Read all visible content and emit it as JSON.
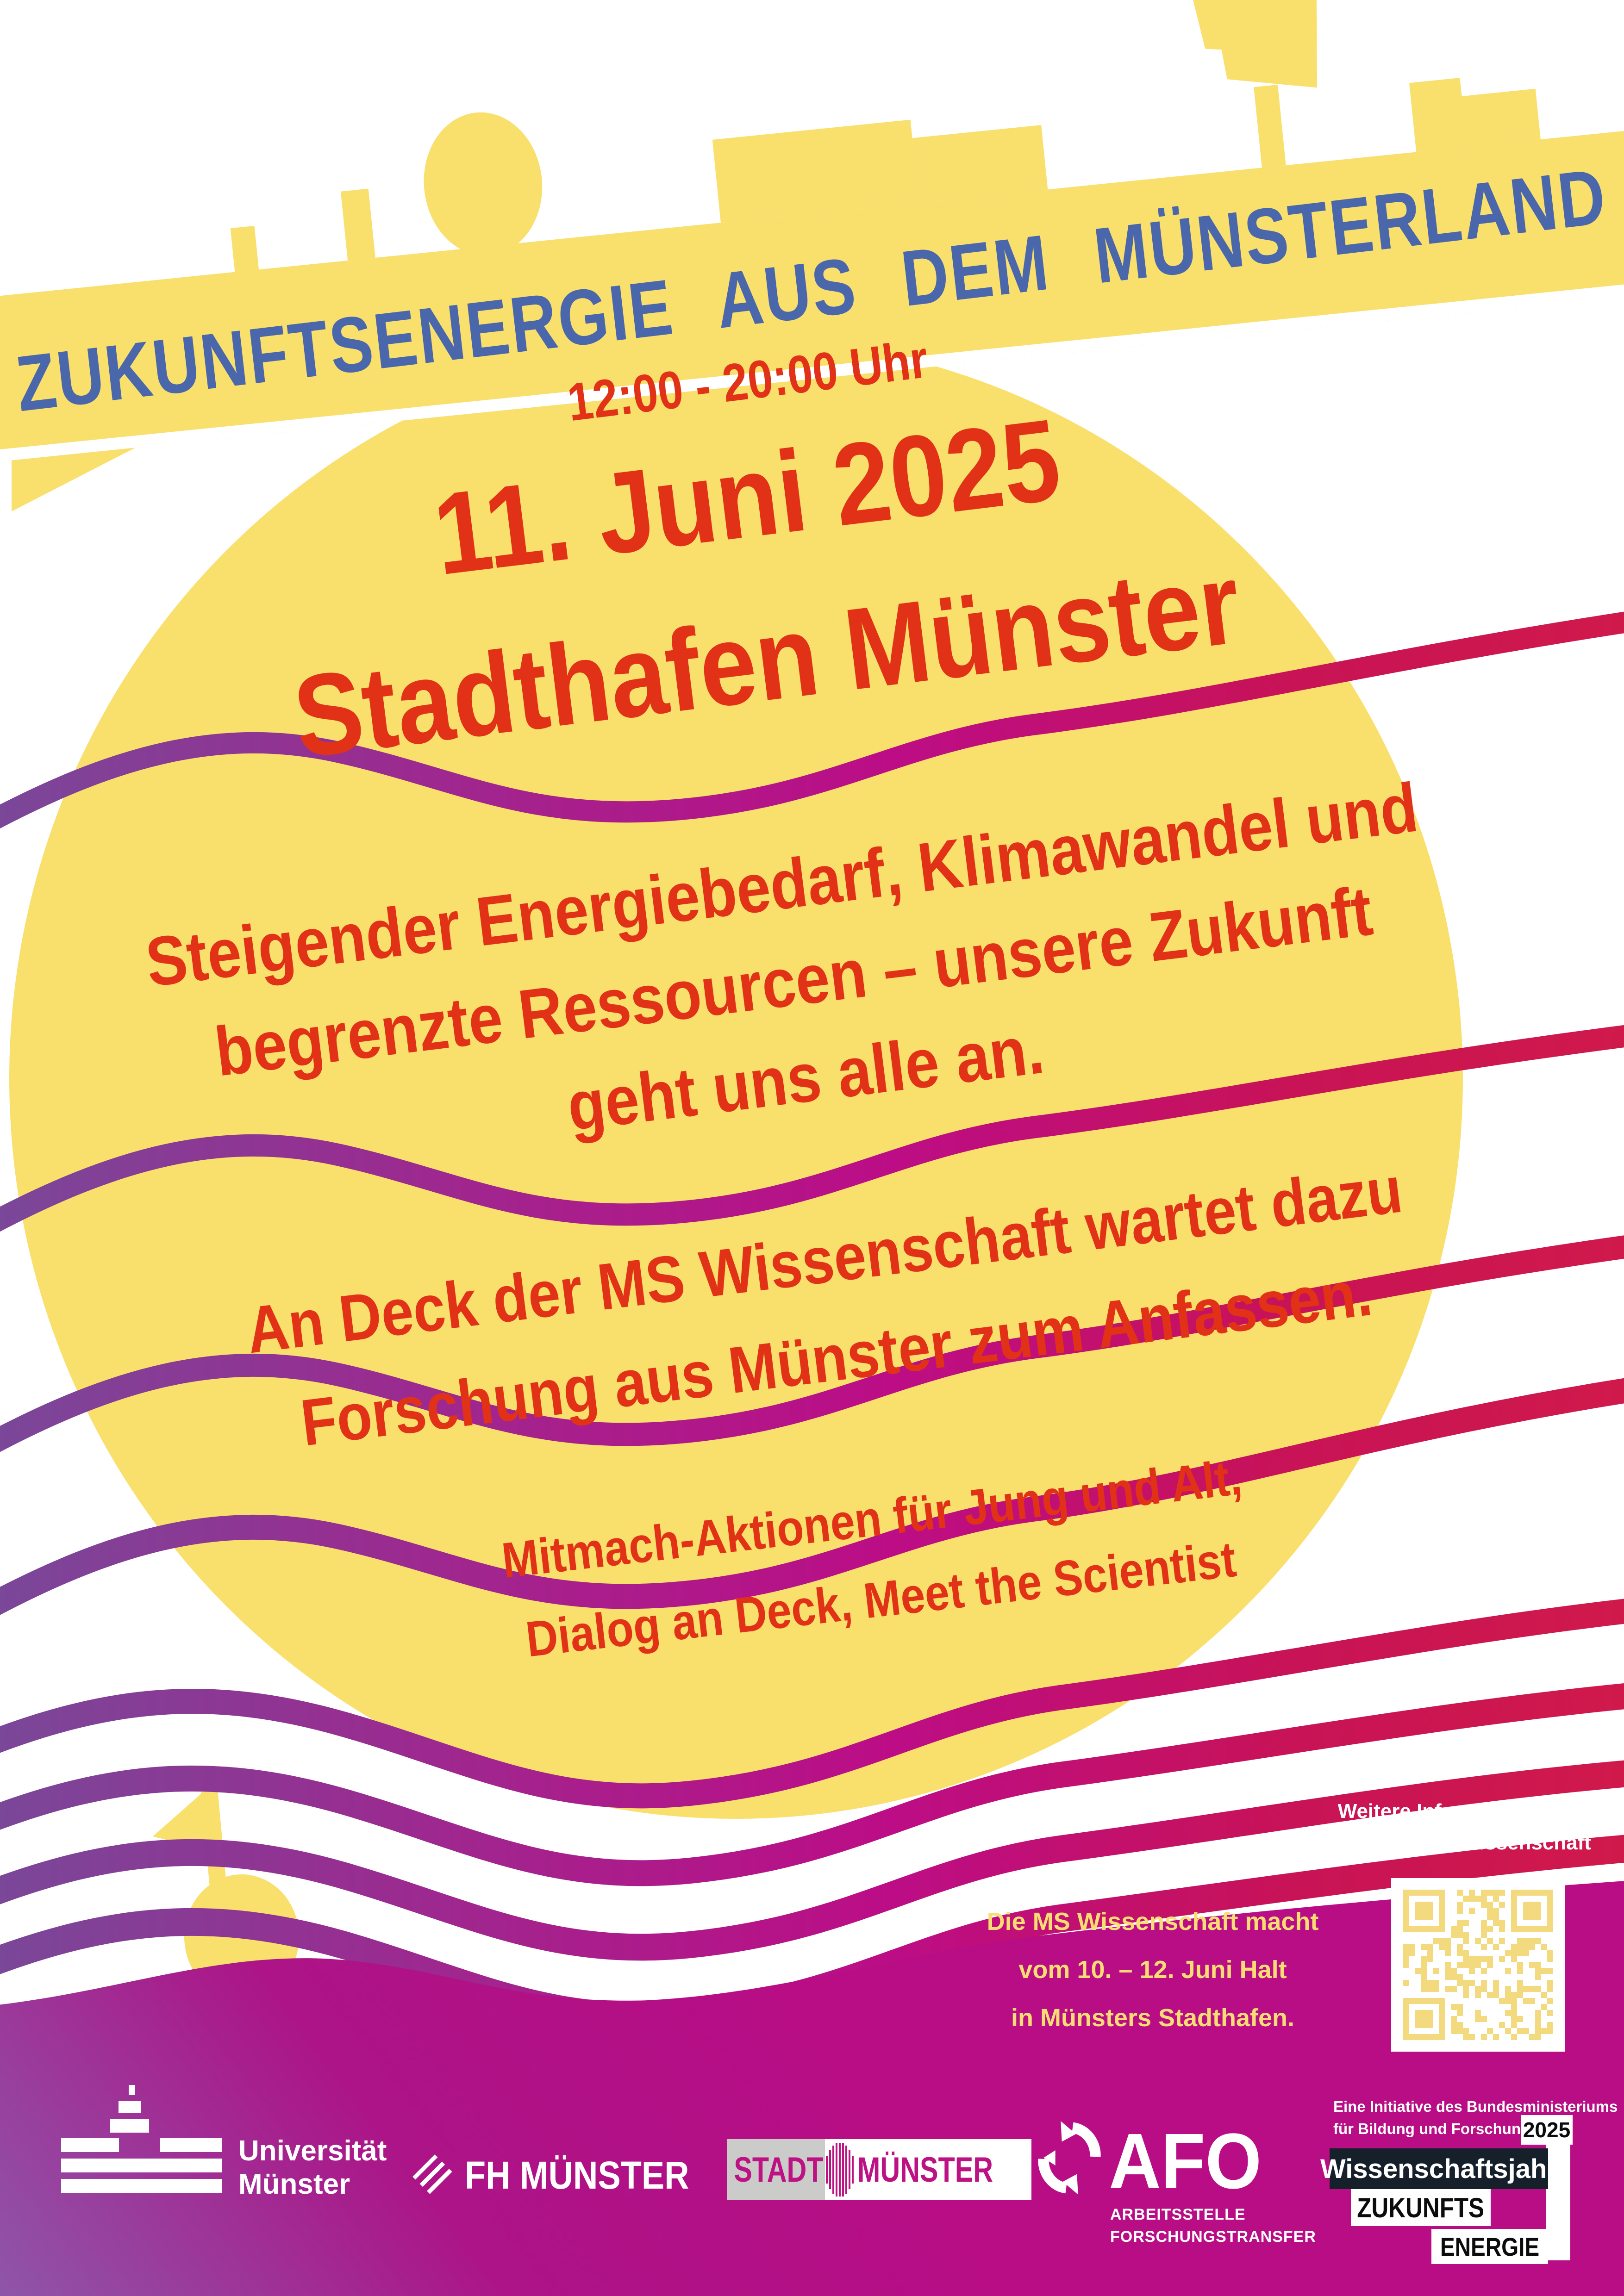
{
  "banner": {
    "title": "ZUKUNFTSENERGIE AUS DEM MÜNSTERLAND"
  },
  "event": {
    "time": "12:00 - 20:00 Uhr",
    "date": "11. Juni 2025",
    "location": "Stadthafen Münster",
    "intro_lines": [
      "Steigender Energiebedarf, Klimawandel und",
      "begrenzte Ressourcen – unsere Zukunft",
      "geht uns alle an."
    ],
    "deck_lines": [
      "An Deck der MS Wissenschaft wartet dazu",
      "Forschung aus Münster zum Anfassen."
    ],
    "activity_lines": [
      "Mitmach-Aktionen für Jung und Alt,",
      "Dialog an Deck, Meet the Scientist"
    ]
  },
  "info": {
    "more_info_label": "Weitere Informationen unter:",
    "more_info_url": "uni.ms/mswissenschaft",
    "schedule_lines": [
      "Die MS Wissenschaft macht",
      "vom 10. – 12. Juni Halt",
      "in Münsters Stadthafen."
    ]
  },
  "logos": {
    "uni": {
      "line1": "Universität",
      "line2": "Münster"
    },
    "fh": {
      "label": "FH MÜNSTER"
    },
    "stadt": {
      "part1": "STADT",
      "part2": "MÜNSTER"
    },
    "afo": {
      "label": "AFO",
      "sub1": "ARBEITSSTELLE",
      "sub2": "FORSCHUNGSTRANSFER"
    },
    "wissenschaftsjahr": {
      "initiative_line1": "Eine Initiative des Bundesministeriums",
      "initiative_line2": "für Bildung und Forschung",
      "year": "2025",
      "title": "Wissenschaftsjahr",
      "energy_line1": "ZUKUNFTS",
      "energy_line2": "ENERGIE"
    }
  },
  "colors": {
    "yellow": "#F9DF6C",
    "blue": "#4A67AC",
    "red": "#E13218",
    "magenta": "#BC0D86",
    "purple": "#7A4799",
    "crimson": "#D0194B",
    "bottom_pink": "#B20D86",
    "bottom_purple": "#8E55A8",
    "dark_navy": "#15202B",
    "grey": "#CBCBC9",
    "qr_module": "#F3DA7E"
  }
}
